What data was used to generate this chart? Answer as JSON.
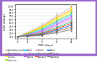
{
  "title": "",
  "xlabel": "PMI (days)",
  "ylabel": "Fold change",
  "x_positions": [
    0,
    2,
    5,
    8,
    11
  ],
  "series": [
    {
      "name": "Aminobutyric acid",
      "color": "#c0c0c0",
      "values": [
        100,
        220,
        430,
        700,
        950
      ],
      "errors": [
        5,
        30,
        50,
        80,
        110
      ]
    },
    {
      "name": "Phenylalanine",
      "color": "#ff9900",
      "values": [
        100,
        200,
        390,
        650,
        880
      ],
      "errors": [
        5,
        25,
        45,
        75,
        100
      ]
    },
    {
      "name": "Leucine",
      "color": "#ffff00",
      "values": [
        100,
        190,
        370,
        610,
        830
      ],
      "errors": [
        5,
        22,
        40,
        70,
        90
      ]
    },
    {
      "name": "Isoleucine",
      "color": "#99cc00",
      "values": [
        100,
        180,
        340,
        570,
        780
      ],
      "errors": [
        5,
        20,
        35,
        65,
        85
      ]
    },
    {
      "name": "Valine",
      "color": "#00ccff",
      "values": [
        100,
        170,
        310,
        530,
        730
      ],
      "errors": [
        5,
        18,
        32,
        60,
        80
      ]
    },
    {
      "name": "Tyrosine",
      "color": "#9999ff",
      "values": [
        100,
        160,
        280,
        490,
        680
      ],
      "errors": [
        5,
        17,
        28,
        55,
        75
      ]
    },
    {
      "name": "Glycine",
      "color": "#cc33ff",
      "values": [
        100,
        150,
        255,
        450,
        640
      ],
      "errors": [
        5,
        15,
        25,
        50,
        70
      ]
    },
    {
      "name": "Proline",
      "color": "#ff99cc",
      "values": [
        100,
        142,
        230,
        400,
        580
      ],
      "errors": [
        5,
        14,
        22,
        45,
        65
      ]
    },
    {
      "name": "Threonine",
      "color": "#00cc66",
      "values": [
        100,
        135,
        210,
        360,
        530
      ],
      "errors": [
        5,
        13,
        20,
        40,
        60
      ]
    },
    {
      "name": "Glutamine",
      "color": "#ff3300",
      "values": [
        100,
        128,
        192,
        325,
        480
      ],
      "errors": [
        5,
        12,
        18,
        35,
        55
      ]
    },
    {
      "name": "Serine",
      "color": "#0066ff",
      "values": [
        100,
        122,
        175,
        290,
        430
      ],
      "errors": [
        5,
        11,
        16,
        30,
        50
      ]
    },
    {
      "name": "Methionine",
      "color": "#996633",
      "values": [
        100,
        116,
        158,
        255,
        370
      ],
      "errors": [
        5,
        10,
        14,
        26,
        42
      ]
    },
    {
      "name": "Glutamate",
      "color": "#666666",
      "values": [
        100,
        110,
        140,
        215,
        300
      ],
      "errors": [
        5,
        9,
        12,
        22,
        35
      ]
    }
  ],
  "ylim": [
    50,
    1050
  ],
  "ytick_labels": [
    "100",
    "200",
    "300",
    "400",
    "500",
    "600",
    "700",
    "800",
    "900",
    "1000"
  ],
  "ytick_vals": [
    100,
    200,
    300,
    400,
    500,
    600,
    700,
    800,
    900,
    1000
  ],
  "xticks": [
    0,
    2,
    5,
    8,
    11
  ],
  "background_color": "#ffffff",
  "border_color": "#9966cc",
  "legend_ncol": 4
}
